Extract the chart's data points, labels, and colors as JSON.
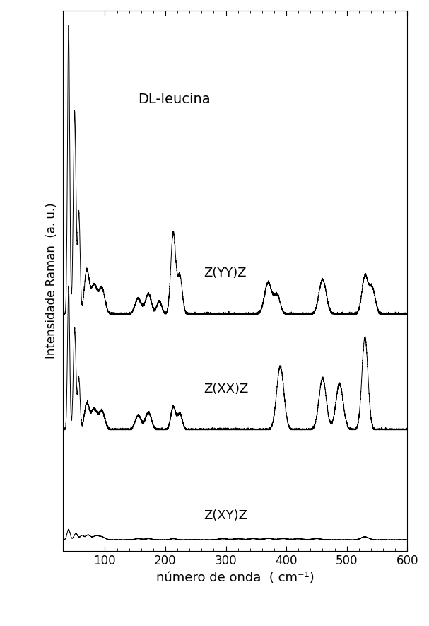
{
  "title_text": "DL-leucina",
  "xlabel": "número de onda  ( cm⁻¹)",
  "ylabel": "Intensidade Raman  (a. u.)",
  "xmin": 30,
  "xmax": 600,
  "labels": [
    "Z(YY)Z",
    "Z(XX)Z",
    "Z(XY)Z"
  ],
  "background_color": "#ffffff",
  "line_color": "#000000",
  "xticks": [
    100,
    200,
    300,
    400,
    500,
    600
  ]
}
